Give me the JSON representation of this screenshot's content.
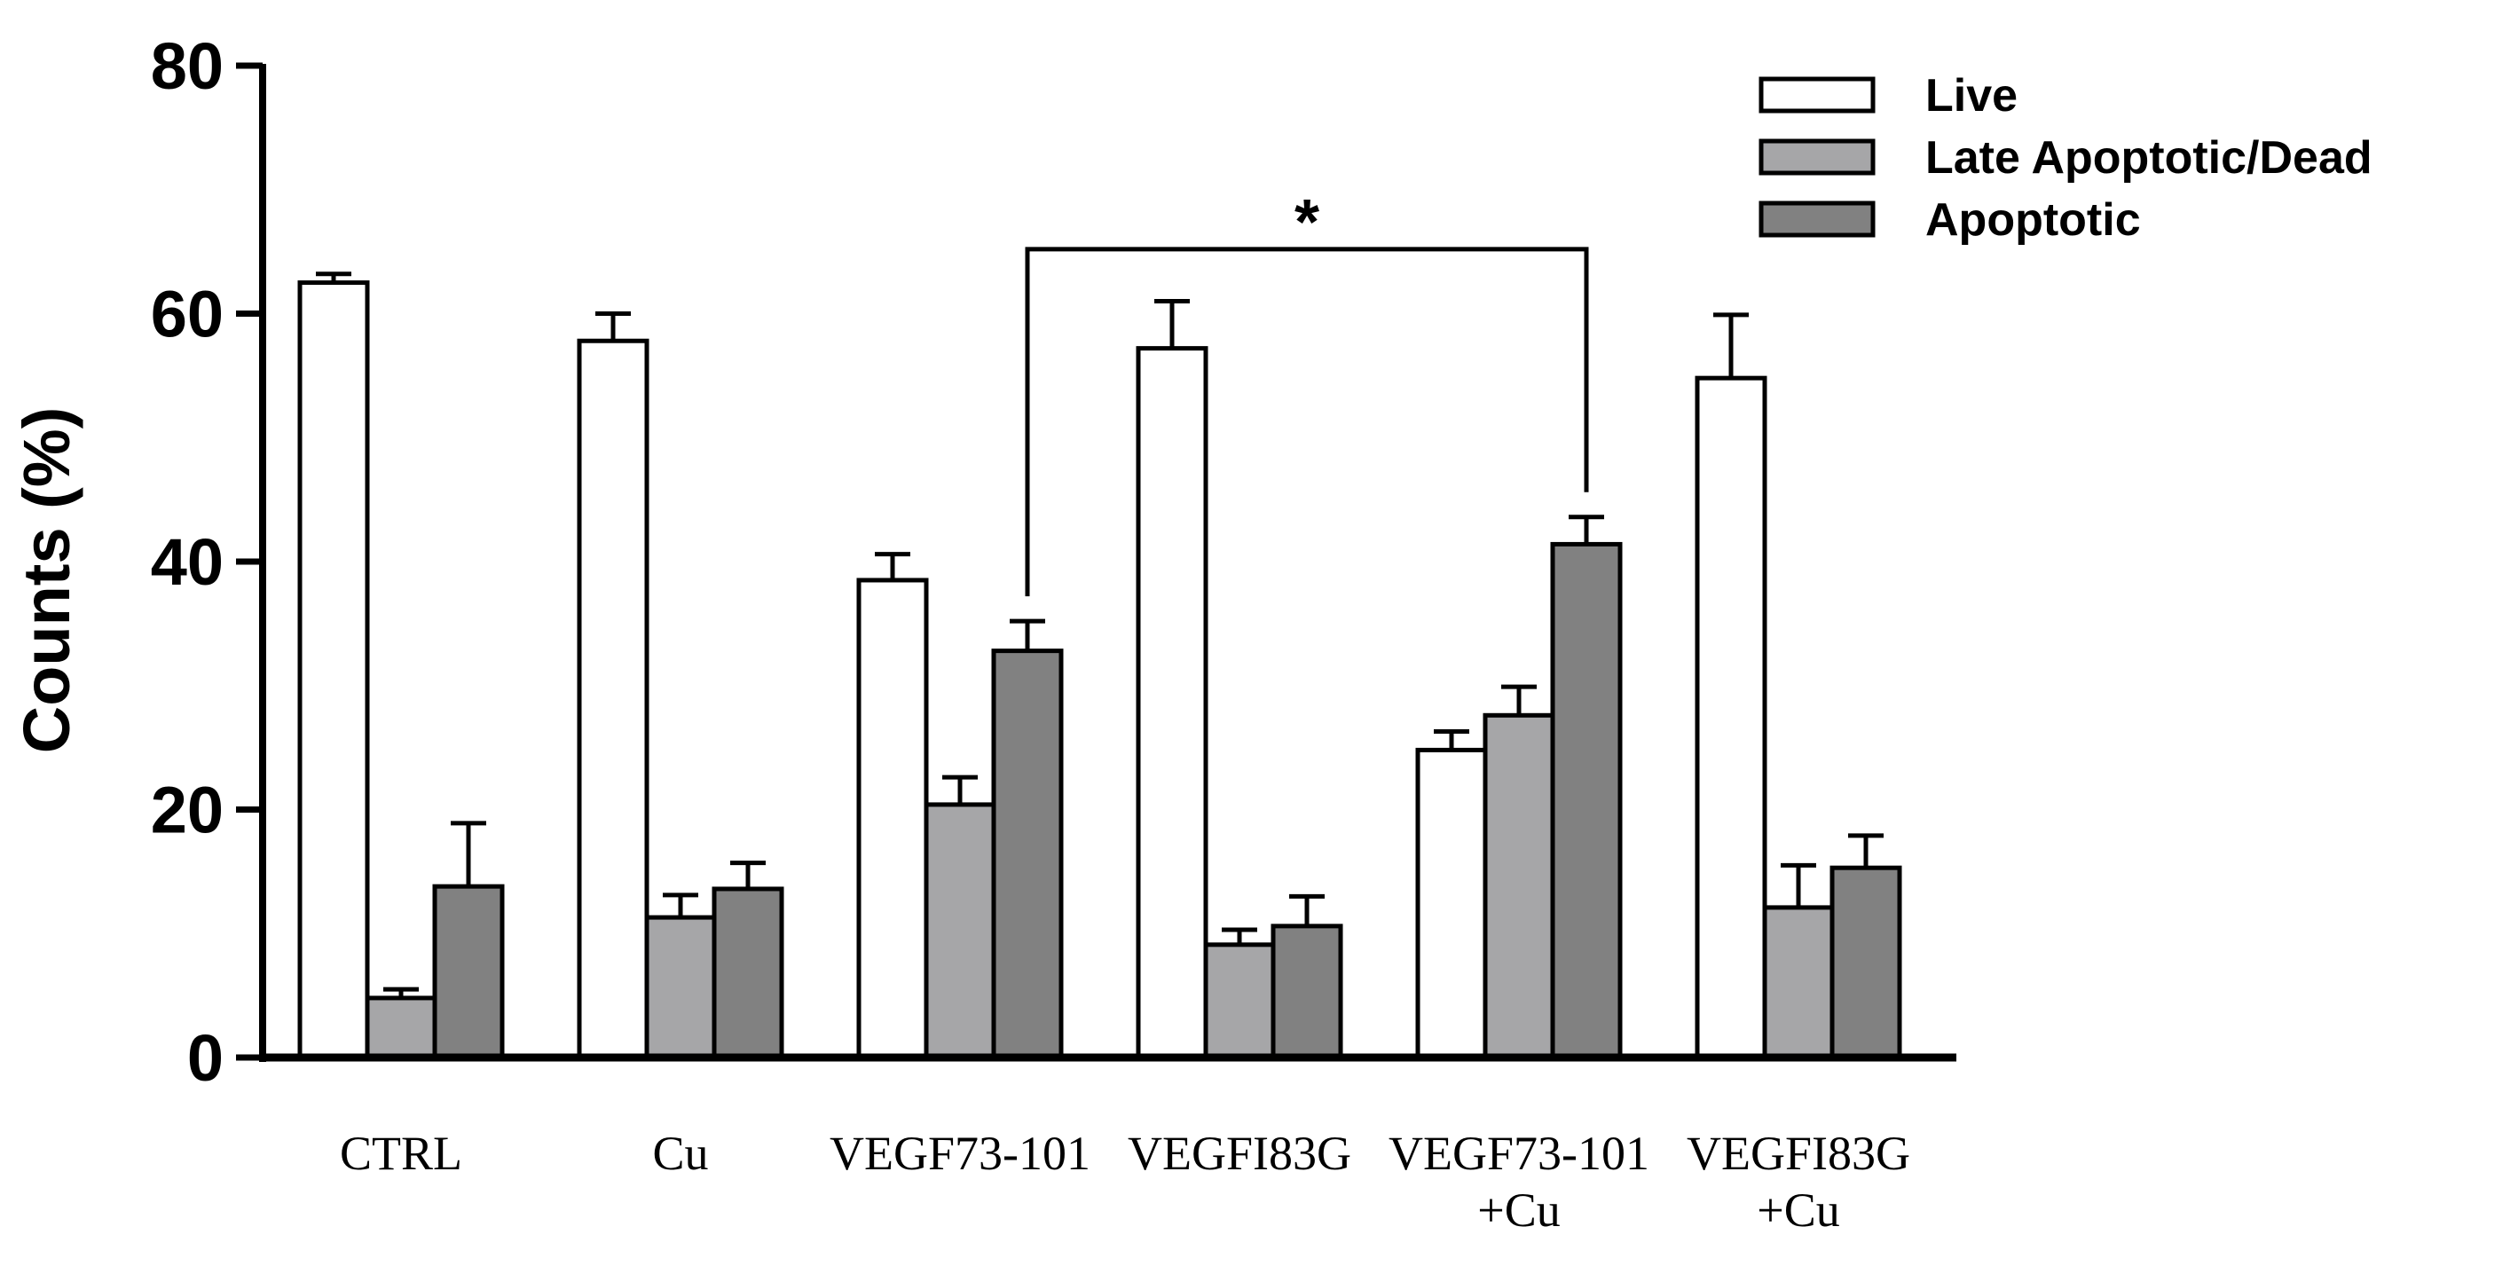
{
  "chart_data": {
    "type": "bar",
    "title": "",
    "xlabel": "",
    "ylabel": "Counts (%)",
    "ylim": [
      0,
      80
    ],
    "yticks": [
      0,
      20,
      40,
      60,
      80
    ],
    "grid": false,
    "legend_position": "top-right",
    "categories": [
      [
        "CTRL"
      ],
      [
        "Cu"
      ],
      [
        "VEGF73-101"
      ],
      [
        "VEGFI83G"
      ],
      [
        "VEGF73-101",
        "+Cu"
      ],
      [
        "VEGFI83G",
        "+Cu"
      ]
    ],
    "series": [
      {
        "name": "Live",
        "color": "#ffffff",
        "values": [
          62.5,
          57.8,
          38.5,
          57.2,
          24.8,
          54.8
        ],
        "errors": [
          0.7,
          2.2,
          2.1,
          3.8,
          1.5,
          5.1
        ]
      },
      {
        "name": "Late Apoptotic/Dead",
        "color": "#a6a6a8",
        "values": [
          4.8,
          11.3,
          20.4,
          9.1,
          27.6,
          12.1
        ],
        "errors": [
          0.7,
          1.8,
          2.2,
          1.2,
          2.3,
          3.4
        ]
      },
      {
        "name": "Apoptotic",
        "color": "#818181",
        "values": [
          13.8,
          13.6,
          32.8,
          10.6,
          41.4,
          15.3
        ],
        "errors": [
          5.1,
          2.1,
          2.4,
          2.4,
          2.2,
          2.6
        ]
      }
    ],
    "annotations": [
      {
        "text": "*",
        "type": "significance-bracket",
        "from": {
          "category": 2,
          "series": 2
        },
        "to": {
          "category": 4,
          "series": 2
        },
        "level": 65.2
      }
    ]
  }
}
